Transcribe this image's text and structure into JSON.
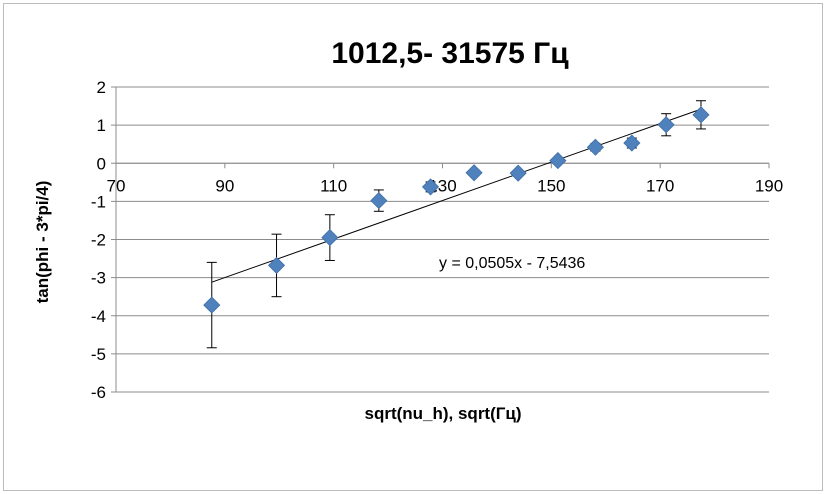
{
  "chart_data": {
    "type": "scatter",
    "title": "1012,5- 31575 Гц",
    "xlabel": "sqrt(nu_h), sqrt(Гц)",
    "ylabel": "tan(phi - 3*pi/4)",
    "xlim": [
      70,
      190
    ],
    "ylim": [
      -6,
      2
    ],
    "x_ticks": [
      70,
      90,
      110,
      130,
      150,
      170,
      190
    ],
    "y_ticks": [
      2,
      1,
      0,
      -1,
      -2,
      -3,
      -4,
      -5,
      -6
    ],
    "x_tick_labels": [
      "70",
      "90",
      "110",
      "130",
      "150",
      "170",
      "190"
    ],
    "y_tick_labels": [
      "2",
      "1",
      "0",
      "-1",
      "-2",
      "-3",
      "-4",
      "-5",
      "-6"
    ],
    "grid": "horizontal",
    "legend": "none",
    "marker_color": "#4F81BD",
    "series": [
      {
        "x": [
          87.6,
          99.5,
          109.3,
          118.3,
          127.8,
          135.8,
          143.9,
          151.2,
          158.1,
          164.8,
          171.1,
          177.5
        ],
        "y": [
          -3.72,
          -2.68,
          -1.95,
          -0.98,
          -0.62,
          -0.25,
          -0.26,
          0.07,
          0.42,
          0.53,
          1.01,
          1.27
        ],
        "err": [
          1.12,
          0.82,
          0.6,
          0.28,
          0.13,
          0.07,
          0.07,
          0.05,
          0.1,
          0.13,
          0.29,
          0.37
        ]
      }
    ],
    "trendline": {
      "slope": 0.0505,
      "intercept": -7.5436,
      "x_range": [
        87.6,
        177.5
      ],
      "equation": "y = 0,0505x - 7,5436"
    }
  }
}
